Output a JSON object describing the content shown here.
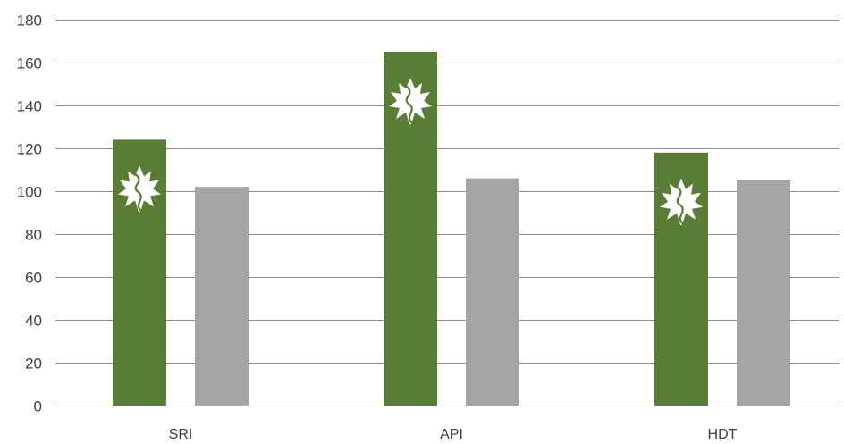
{
  "chart_data": {
    "type": "bar",
    "categories": [
      "SRI",
      "API",
      "HDT"
    ],
    "series": [
      {
        "values": [
          124,
          165,
          118
        ],
        "color": "#5a7d36",
        "icon": "maple-leaf-icon"
      },
      {
        "values": [
          102,
          106,
          105
        ],
        "color": "#a5a5a5"
      }
    ],
    "ylim": [
      0,
      180
    ],
    "yticks": [
      0,
      20,
      40,
      60,
      80,
      100,
      120,
      140,
      160,
      180
    ],
    "grid": true,
    "legend": "none"
  }
}
